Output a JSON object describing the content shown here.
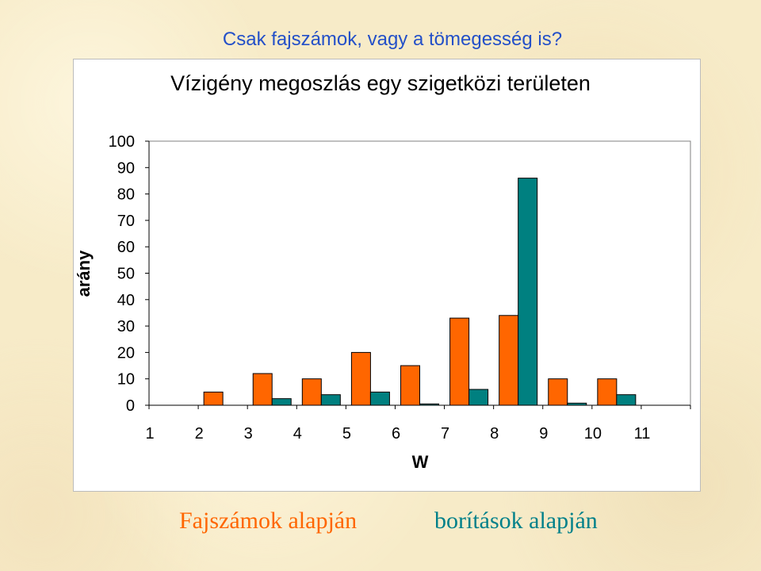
{
  "slide": {
    "subtitle": "Csak fajszámok, vagy a tömegesség is?"
  },
  "colors": {
    "series1": "#ff6600",
    "series2": "#008080",
    "subtitle": "#2450c8"
  },
  "legend": {
    "left_label": "Fajszámok alapján",
    "right_label": "borítások alapján"
  },
  "chart_data": {
    "type": "bar",
    "title": "Vízigény megoszlás egy szigetközi területen",
    "xlabel": "W",
    "ylabel": "arány",
    "categories": [
      "1",
      "2",
      "3",
      "4",
      "5",
      "6",
      "7",
      "8",
      "9",
      "10",
      "11"
    ],
    "ylim": [
      0,
      100
    ],
    "yticks": [
      0,
      10,
      20,
      30,
      40,
      50,
      60,
      70,
      80,
      90,
      100
    ],
    "grid": false,
    "series": [
      {
        "name": "Fajszámok alapján",
        "values": [
          0,
          5,
          12,
          10,
          20,
          15,
          33,
          34,
          10,
          10,
          0
        ]
      },
      {
        "name": "borítások alapján",
        "values": [
          0,
          0,
          2.5,
          4,
          5,
          0.5,
          6,
          86,
          0.8,
          4,
          0
        ]
      }
    ]
  }
}
